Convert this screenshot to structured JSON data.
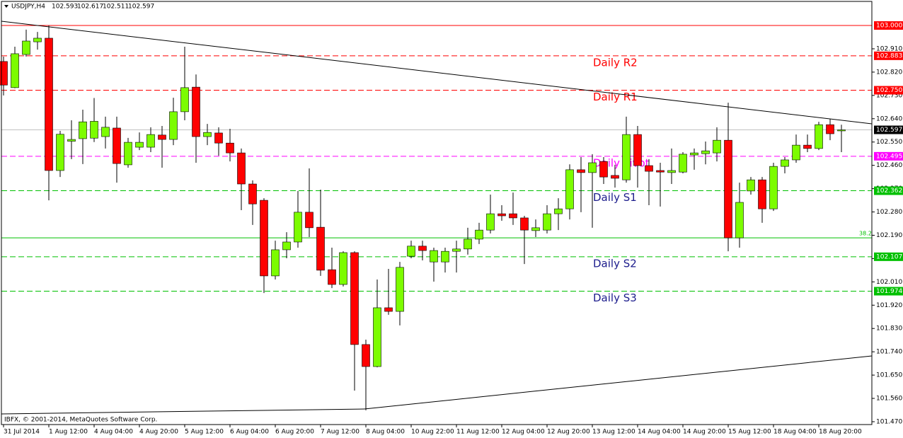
{
  "chart_data": {
    "type": "candlestick",
    "title": "USDJPY,H4",
    "header_values": [
      102.593,
      102.617,
      102.511,
      102.597
    ],
    "footer": "IBFX, © 2001-2014, MetaQuotes Software Corp.",
    "categories": [
      "31 Jul 2014",
      null,
      null,
      null,
      "1 Aug 12:00",
      null,
      null,
      null,
      "4 Aug 04:00",
      null,
      null,
      null,
      "4 Aug 20:00",
      null,
      null,
      null,
      "5 Aug 12:00",
      null,
      null,
      null,
      "6 Aug 04:00",
      null,
      null,
      null,
      "6 Aug 20:00",
      null,
      null,
      null,
      "7 Aug 12:00",
      null,
      null,
      null,
      "8 Aug 04:00",
      null,
      null,
      null,
      "10 Aug 22:00",
      null,
      null,
      null,
      "11 Aug 12:00",
      null,
      null,
      null,
      "12 Aug 04:00",
      null,
      null,
      null,
      "12 Aug 20:00",
      null,
      null,
      null,
      "13 Aug 12:00",
      null,
      null,
      null,
      "14 Aug 04:00",
      null,
      null,
      null,
      "14 Aug 20:00",
      null,
      null,
      null,
      "15 Aug 12:00",
      null,
      null,
      null,
      "18 Aug 04:00",
      null,
      null,
      null,
      "18 Aug 20:00",
      null,
      null
    ],
    "open": [
      102.861,
      102.76,
      102.888,
      102.937,
      102.951,
      102.44,
      102.553,
      102.563,
      102.565,
      102.571,
      102.604,
      102.462,
      102.53,
      102.53,
      102.577,
      102.56,
      102.667,
      102.762,
      102.571,
      102.585,
      102.546,
      102.508,
      102.388,
      102.325,
      102.033,
      102.134,
      102.164,
      102.279,
      102.221,
      102.057,
      102.0,
      102.123,
      101.768,
      101.683,
      101.91,
      101.896,
      102.109,
      102.148,
      102.087,
      102.087,
      102.128,
      102.137,
      102.175,
      102.21,
      102.273,
      102.273,
      102.257,
      102.208,
      102.21,
      102.273,
      102.292,
      102.443,
      102.432,
      102.475,
      102.421,
      102.404,
      102.579,
      102.459,
      102.44,
      102.432,
      102.434,
      102.5,
      102.505,
      102.508,
      102.557,
      102.18,
      102.361,
      102.404,
      102.292,
      102.456,
      102.481,
      102.538,
      102.525,
      102.617,
      102.593
    ],
    "high": [
      102.88,
      102.918,
      102.984,
      102.975,
      103.0,
      102.593,
      102.634,
      102.675,
      102.72,
      102.648,
      102.648,
      102.566,
      102.587,
      102.607,
      102.612,
      102.721,
      102.918,
      102.811,
      102.62,
      102.607,
      102.601,
      102.525,
      102.402,
      102.333,
      102.169,
      102.202,
      102.361,
      102.448,
      102.366,
      102.142,
      102.128,
      102.128,
      101.787,
      102.019,
      102.06,
      102.087,
      102.169,
      102.169,
      102.142,
      102.142,
      102.169,
      102.219,
      102.238,
      102.347,
      102.306,
      102.355,
      102.265,
      102.251,
      102.306,
      102.333,
      102.464,
      102.492,
      102.503,
      102.492,
      102.462,
      102.648,
      102.612,
      102.484,
      102.47,
      102.525,
      102.511,
      102.525,
      102.552,
      102.607,
      102.702,
      102.393,
      102.415,
      102.415,
      102.47,
      102.492,
      102.579,
      102.579,
      102.628,
      102.639,
      102.617
    ],
    "low": [
      102.73,
      102.758,
      102.88,
      102.907,
      102.325,
      102.415,
      102.484,
      102.465,
      102.55,
      102.525,
      102.393,
      102.451,
      102.519,
      102.511,
      102.451,
      102.538,
      102.634,
      102.47,
      102.538,
      102.497,
      102.475,
      102.287,
      102.23,
      101.967,
      102.019,
      102.101,
      102.142,
      102.183,
      102.033,
      101.986,
      101.992,
      101.59,
      101.514,
      101.68,
      101.883,
      101.842,
      102.101,
      102.093,
      102.011,
      102.046,
      102.046,
      102.115,
      102.156,
      102.197,
      102.246,
      102.23,
      102.079,
      102.183,
      102.197,
      102.21,
      102.251,
      102.279,
      102.219,
      102.388,
      102.374,
      102.393,
      102.374,
      102.306,
      102.301,
      102.388,
      102.429,
      102.443,
      102.464,
      102.475,
      102.128,
      102.142,
      102.347,
      102.238,
      102.284,
      102.429,
      102.47,
      102.511,
      102.519,
      102.557,
      102.511
    ],
    "close": [
      102.77,
      102.891,
      102.94,
      102.951,
      102.44,
      102.58,
      102.56,
      102.628,
      102.63,
      102.607,
      102.467,
      102.549,
      102.549,
      102.579,
      102.56,
      102.667,
      102.76,
      102.571,
      102.587,
      102.546,
      102.508,
      102.388,
      102.311,
      102.033,
      102.134,
      102.164,
      102.279,
      102.219,
      102.055,
      102.0,
      102.123,
      101.768,
      101.683,
      101.91,
      101.896,
      102.066,
      102.148,
      102.131,
      102.131,
      102.128,
      102.137,
      102.175,
      102.21,
      102.273,
      102.265,
      102.257,
      102.21,
      102.219,
      102.273,
      102.292,
      102.443,
      102.432,
      102.47,
      102.415,
      102.41,
      102.579,
      102.459,
      102.437,
      102.434,
      102.44,
      102.503,
      102.508,
      102.516,
      102.557,
      102.18,
      102.317,
      102.404,
      102.292,
      102.456,
      102.481,
      102.538,
      102.525,
      102.617,
      102.582,
      102.597
    ],
    "up_color": "#7cfc00",
    "down_color": "#ff0000",
    "ylim": [
      101.459,
      103.093
    ],
    "yticks": [
      {
        "value": 102.91,
        "label": "102.910"
      },
      {
        "value": 102.82,
        "label": "102.820"
      },
      {
        "value": 102.73,
        "label": "102.730"
      },
      {
        "value": 102.64,
        "label": "102.640"
      },
      {
        "value": 102.55,
        "label": "102.550"
      },
      {
        "value": 102.46,
        "label": "102.460"
      },
      {
        "value": 102.37,
        "label": "102.370"
      },
      {
        "value": 102.28,
        "label": "102.280"
      },
      {
        "value": 102.19,
        "label": "102.190"
      },
      {
        "value": 102.1,
        "label": "102.100"
      },
      {
        "value": 102.01,
        "label": "102.010"
      },
      {
        "value": 101.92,
        "label": "101.920"
      },
      {
        "value": 101.83,
        "label": "101.830"
      },
      {
        "value": 101.74,
        "label": "101.740"
      },
      {
        "value": 101.65,
        "label": "101.650"
      },
      {
        "value": 101.56,
        "label": "101.560"
      },
      {
        "value": 101.47,
        "label": "101.470"
      }
    ],
    "levels": [
      {
        "price": {
          "value": 103,
          "label": "103.000"
        },
        "color": "#ff0000",
        "dashed": false
      },
      {
        "price": 102.883,
        "name": "Daily R2",
        "color": "#ff0000",
        "dashed": true
      },
      {
        "price": {
          "value": 102.75,
          "label": "102.750"
        },
        "name": "Daily R1",
        "color": "#ff0000",
        "dashed": true
      },
      {
        "price": 102.495,
        "name": "Daily Pivot",
        "color": "#ff00ff",
        "dashed": true
      },
      {
        "price": 102.362,
        "name": "Daily S1",
        "color": "#00c000",
        "dashed": true
      },
      {
        "price": 102.107,
        "name": "Daily S2",
        "color": "#00c000",
        "dashed": true
      },
      {
        "price": 101.974,
        "name": "Daily S3",
        "color": "#00c000",
        "dashed": true
      }
    ],
    "fib": {
      "level": 38.2,
      "price": 102.18,
      "color": "#00c000"
    },
    "last_price": 102.597
  }
}
